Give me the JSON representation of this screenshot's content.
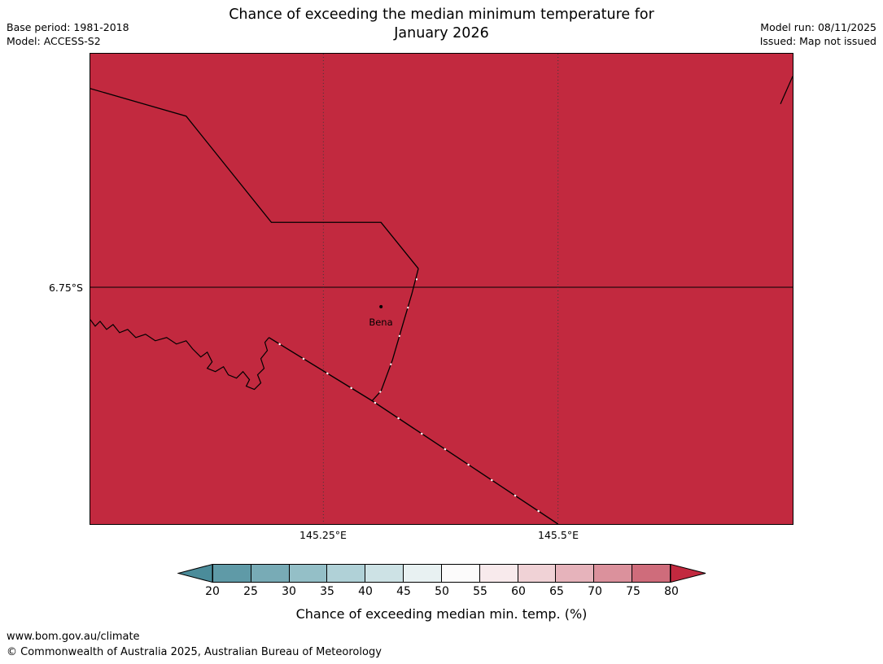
{
  "header": {
    "title_line1": "Chance of exceeding the median minimum temperature for",
    "title_line2": "January 2026",
    "base_period": "Base period: 1981-2018",
    "model": "Model: ACCESS-S2",
    "model_run": "Model run: 08/11/2025",
    "issued": "Issued: Map not issued"
  },
  "map": {
    "fill_color": "#c2293f",
    "y_axis_labels": [
      "6.75°S"
    ],
    "x_axis_labels": [
      "145.25°E",
      "145.5°E"
    ],
    "town": {
      "name": "Bena"
    }
  },
  "legend": {
    "caption": "Chance of exceeding median min. temp. (%)",
    "tick_labels": [
      "20",
      "25",
      "30",
      "35",
      "40",
      "45",
      "50",
      "55",
      "60",
      "65",
      "70",
      "75",
      "80"
    ],
    "left_arrow_color": "#4b8c9a",
    "right_arrow_color": "#c2293f",
    "segment_colors": [
      "#5f9aa7",
      "#78abb6",
      "#94bfc7",
      "#b0d1d7",
      "#cde2e5",
      "#e8f1f2",
      "#fcfbfb",
      "#f8eaec",
      "#f0d2d6",
      "#e6b3bb",
      "#db919c",
      "#cf6c7b"
    ]
  },
  "chart_data": {
    "type": "heatmap",
    "title": "Chance of exceeding the median minimum temperature for January 2026",
    "colorbar_label": "Chance of exceeding median min. temp. (%)",
    "colorbar_ticks": [
      20,
      25,
      30,
      35,
      40,
      45,
      50,
      55,
      60,
      65,
      70,
      75,
      80
    ],
    "x_ticks": [
      "145.25°E",
      "145.5°E"
    ],
    "y_ticks": [
      "6.75°S"
    ],
    "region_value": ">80",
    "towns": [
      "Bena"
    ]
  },
  "footer": {
    "url": "www.bom.gov.au/climate",
    "copyright": "© Commonwealth of Australia 2025, Australian Bureau of Meteorology"
  }
}
